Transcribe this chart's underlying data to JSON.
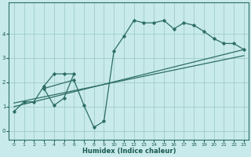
{
  "xlabel": "Humidex (Indice chaleur)",
  "background_color": "#c8eaea",
  "grid_color": "#a0cbcb",
  "line_color": "#2d6e65",
  "xlim": [
    -0.5,
    23.5
  ],
  "ylim": [
    -0.35,
    5.3
  ],
  "yticks": [
    0,
    1,
    2,
    3,
    4
  ],
  "xticks": [
    0,
    1,
    2,
    3,
    4,
    5,
    6,
    7,
    8,
    9,
    10,
    11,
    12,
    13,
    14,
    15,
    16,
    17,
    18,
    19,
    20,
    21,
    22,
    23
  ],
  "line1_x": [
    0,
    1,
    2,
    3,
    4,
    5,
    6,
    5,
    4,
    3,
    6,
    7,
    8,
    9,
    10,
    11,
    12,
    13,
    14,
    15,
    16,
    17,
    18,
    19,
    20,
    21,
    22,
    23
  ],
  "line1_y": [
    0.8,
    1.2,
    1.2,
    1.85,
    2.35,
    2.35,
    2.35,
    1.35,
    1.05,
    1.75,
    2.1,
    1.05,
    0.15,
    0.4,
    3.3,
    3.9,
    4.55,
    4.45,
    4.45,
    4.55,
    4.2,
    4.45,
    4.35,
    4.1,
    3.8,
    3.6,
    3.6,
    3.35
  ],
  "reg_line1_x": [
    0,
    23
  ],
  "reg_line1_y": [
    1.0,
    3.35
  ],
  "reg_line2_x": [
    0,
    23
  ],
  "reg_line2_y": [
    1.15,
    3.1
  ]
}
